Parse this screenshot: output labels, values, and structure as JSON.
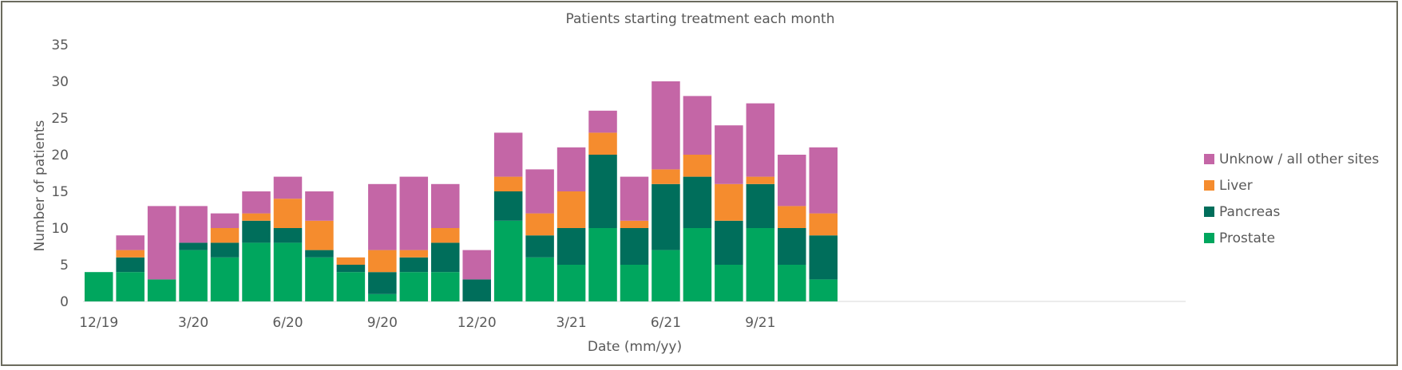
{
  "chart_data": {
    "type": "bar",
    "stacked": true,
    "title": "Patients starting treatment each month",
    "xlabel": "Date (mm/yy)",
    "ylabel": "Number of patients",
    "ylim": [
      0,
      35
    ],
    "yticks": [
      0,
      5,
      10,
      15,
      20,
      25,
      30,
      35
    ],
    "grid": false,
    "legend_position": "right",
    "categories": [
      "12/19",
      "1/20",
      "2/20",
      "3/20",
      "4/20",
      "5/20",
      "6/20",
      "7/20",
      "8/20",
      "9/20",
      "10/20",
      "11/20",
      "12/20",
      "1/21",
      "2/21",
      "3/21",
      "4/21",
      "5/21",
      "6/21",
      "7/21",
      "8/21",
      "9/21",
      "10/21",
      "11/21"
    ],
    "xtick_labels": [
      {
        "index": 0,
        "label": "12/19"
      },
      {
        "index": 3,
        "label": "3/20"
      },
      {
        "index": 6,
        "label": "6/20"
      },
      {
        "index": 9,
        "label": "9/20"
      },
      {
        "index": 12,
        "label": "12/20"
      },
      {
        "index": 15,
        "label": "3/21"
      },
      {
        "index": 18,
        "label": "6/21"
      },
      {
        "index": 21,
        "label": "9/21"
      }
    ],
    "axis_slots": 35,
    "series": [
      {
        "name": "Prostate",
        "color": "#00a65e",
        "values": [
          4,
          4,
          3,
          7,
          6,
          8,
          8,
          6,
          4,
          1,
          4,
          4,
          0,
          11,
          6,
          5,
          10,
          5,
          7,
          10,
          5,
          10,
          5,
          3
        ]
      },
      {
        "name": "Pancreas",
        "color": "#006e5b",
        "values": [
          0,
          2,
          0,
          1,
          2,
          3,
          2,
          1,
          1,
          3,
          2,
          4,
          3,
          4,
          3,
          5,
          10,
          5,
          9,
          7,
          6,
          6,
          5,
          6
        ]
      },
      {
        "name": "Liver",
        "color": "#f58c2e",
        "values": [
          0,
          1,
          0,
          0,
          2,
          1,
          4,
          4,
          1,
          3,
          1,
          2,
          0,
          2,
          3,
          5,
          3,
          1,
          2,
          3,
          5,
          1,
          3,
          3
        ]
      },
      {
        "name": "Unknow / all other sites",
        "color": "#c466a6",
        "values": [
          0,
          2,
          10,
          5,
          2,
          3,
          3,
          4,
          0,
          9,
          10,
          6,
          4,
          6,
          6,
          6,
          3,
          6,
          12,
          8,
          8,
          10,
          7,
          9
        ]
      }
    ],
    "legend_order": [
      "Unknow / all other sites",
      "Liver",
      "Pancreas",
      "Prostate"
    ]
  }
}
